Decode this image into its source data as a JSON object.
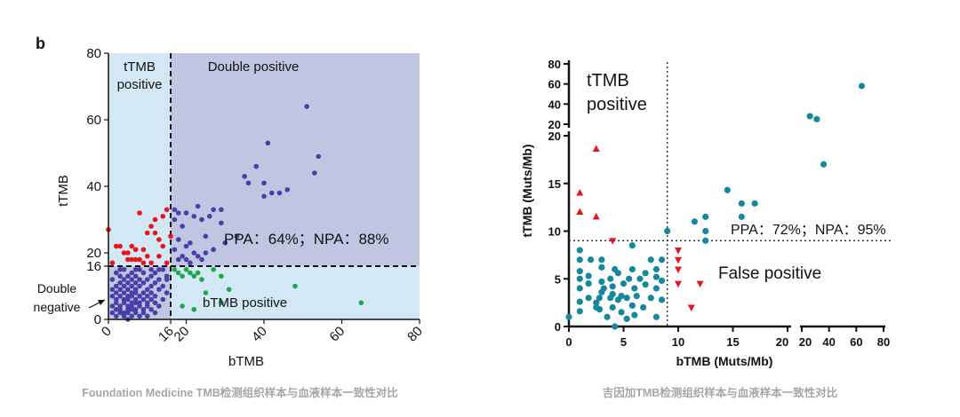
{
  "captions": {
    "left": "Foundation Medicine TMB检测组织样本与血液样本一致性对比",
    "right": "吉因加TMB检测组织样本与血液样本一致性对比"
  },
  "chart_data": [
    {
      "type": "scatter",
      "panel_label": "b",
      "xlabel": "bTMB",
      "ylabel": "tTMB",
      "xlim": [
        0,
        80
      ],
      "ylim": [
        0,
        80
      ],
      "x_ticks": [
        "0",
        "16",
        "20",
        "40",
        "60",
        "80"
      ],
      "y_ticks": [
        "0",
        "16",
        "20",
        "40",
        "60",
        "80"
      ],
      "threshold_x": 16,
      "threshold_y": 16,
      "region_labels": {
        "ttmb_positive": [
          "tTMB",
          "positive"
        ],
        "double_positive": "Double positive",
        "double_negative": [
          "Double",
          "negative"
        ],
        "btmb_positive": "bTMB positive"
      },
      "annotation": "PPA：64%；NPA：88%",
      "colors": {
        "double_positive": "#4a3fa8",
        "ttmb_only": "#e8141c",
        "btmb_only": "#1aa84a",
        "double_negative": "#4a3fa8",
        "bg_light": "#d3e8f5",
        "bg_dark": "#c0c6e2"
      },
      "series": [
        {
          "group": "double_positive",
          "points": [
            [
              51,
              64
            ],
            [
              54,
              49
            ],
            [
              53,
              44
            ],
            [
              41,
              53
            ],
            [
              46,
              39
            ],
            [
              44,
              38
            ],
            [
              42,
              38
            ],
            [
              40,
              37
            ],
            [
              40,
              41
            ],
            [
              38,
              46
            ],
            [
              36,
              41
            ],
            [
              35,
              43
            ],
            [
              29,
              33
            ],
            [
              27,
              33
            ],
            [
              26,
              31
            ],
            [
              24,
              30
            ],
            [
              23,
              34
            ],
            [
              25,
              25
            ],
            [
              22,
              31
            ],
            [
              20,
              32
            ],
            [
              18,
              32
            ],
            [
              17,
              33
            ],
            [
              21,
              23
            ],
            [
              22,
              20
            ],
            [
              23,
              19
            ],
            [
              20,
              22
            ],
            [
              18,
              24
            ],
            [
              17,
              21
            ],
            [
              19,
              19
            ],
            [
              21,
              17
            ],
            [
              24,
              18
            ],
            [
              27,
              21
            ],
            [
              30,
              23
            ],
            [
              17,
              30
            ],
            [
              19,
              28
            ],
            [
              33,
              25
            ],
            [
              29,
              29
            ],
            [
              25,
              20
            ],
            [
              18,
              18
            ],
            [
              20,
              18
            ]
          ]
        },
        {
          "group": "ttmb_only",
          "points": [
            [
              0,
              27
            ],
            [
              2,
              22
            ],
            [
              1,
              17
            ],
            [
              4,
              20
            ],
            [
              5,
              18
            ],
            [
              6,
              18
            ],
            [
              7,
              21
            ],
            [
              8,
              32
            ],
            [
              9,
              21
            ],
            [
              10,
              19
            ],
            [
              10,
              26
            ],
            [
              11,
              28
            ],
            [
              12,
              26
            ],
            [
              12,
              30
            ],
            [
              13,
              24
            ],
            [
              14,
              22
            ],
            [
              14,
              31
            ],
            [
              15,
              33
            ],
            [
              15,
              17
            ],
            [
              13,
              19
            ],
            [
              11,
              17
            ],
            [
              9,
              17
            ],
            [
              7,
              18
            ],
            [
              5,
              20
            ],
            [
              3,
              22
            ],
            [
              16,
              25
            ],
            [
              6,
              22
            ],
            [
              8,
              18
            ]
          ]
        },
        {
          "group": "btmb_only",
          "points": [
            [
              17,
              15
            ],
            [
              18,
              14
            ],
            [
              19,
              13
            ],
            [
              20,
              15
            ],
            [
              21,
              14
            ],
            [
              22,
              13
            ],
            [
              23,
              14
            ],
            [
              24,
              12
            ],
            [
              25,
              8
            ],
            [
              27,
              15
            ],
            [
              29,
              13
            ],
            [
              31,
              9
            ],
            [
              19,
              4
            ],
            [
              22,
              3
            ],
            [
              29,
              5
            ],
            [
              48,
              10
            ],
            [
              65,
              5
            ]
          ]
        },
        {
          "group": "double_negative",
          "points": [
            [
              1,
              2
            ],
            [
              1,
              4
            ],
            [
              1,
              7
            ],
            [
              1,
              9
            ],
            [
              1,
              12
            ],
            [
              2,
              1
            ],
            [
              2,
              3
            ],
            [
              2,
              5
            ],
            [
              2,
              6
            ],
            [
              2,
              8
            ],
            [
              2,
              10
            ],
            [
              2,
              14
            ],
            [
              3,
              2
            ],
            [
              3,
              3
            ],
            [
              3,
              4
            ],
            [
              3,
              7
            ],
            [
              3,
              9
            ],
            [
              3,
              11
            ],
            [
              3,
              13
            ],
            [
              4,
              1
            ],
            [
              4,
              2
            ],
            [
              4,
              5
            ],
            [
              4,
              6
            ],
            [
              4,
              8
            ],
            [
              4,
              10
            ],
            [
              4,
              12
            ],
            [
              4,
              15
            ],
            [
              5,
              0
            ],
            [
              5,
              2
            ],
            [
              5,
              3
            ],
            [
              5,
              4
            ],
            [
              5,
              6
            ],
            [
              5,
              7
            ],
            [
              5,
              9
            ],
            [
              5,
              11
            ],
            [
              5,
              13
            ],
            [
              6,
              1
            ],
            [
              6,
              3
            ],
            [
              6,
              4
            ],
            [
              6,
              5
            ],
            [
              6,
              7
            ],
            [
              6,
              8
            ],
            [
              6,
              10
            ],
            [
              6,
              12
            ],
            [
              6,
              14
            ],
            [
              7,
              2
            ],
            [
              7,
              3
            ],
            [
              7,
              5
            ],
            [
              7,
              6
            ],
            [
              7,
              8
            ],
            [
              7,
              9
            ],
            [
              7,
              11
            ],
            [
              7,
              13
            ],
            [
              8,
              1
            ],
            [
              8,
              4
            ],
            [
              8,
              5
            ],
            [
              8,
              7
            ],
            [
              8,
              10
            ],
            [
              8,
              12
            ],
            [
              8,
              15
            ],
            [
              9,
              2
            ],
            [
              9,
              3
            ],
            [
              9,
              6
            ],
            [
              9,
              8
            ],
            [
              9,
              11
            ],
            [
              9,
              14
            ],
            [
              10,
              1
            ],
            [
              10,
              4
            ],
            [
              10,
              5
            ],
            [
              10,
              7
            ],
            [
              10,
              9
            ],
            [
              10,
              12
            ],
            [
              11,
              3
            ],
            [
              11,
              6
            ],
            [
              11,
              8
            ],
            [
              11,
              10
            ],
            [
              11,
              13
            ],
            [
              12,
              2
            ],
            [
              12,
              5
            ],
            [
              12,
              7
            ],
            [
              12,
              11
            ],
            [
              12,
              14
            ],
            [
              13,
              4
            ],
            [
              13,
              9
            ],
            [
              13,
              12
            ],
            [
              14,
              6
            ],
            [
              14,
              10
            ],
            [
              14,
              15
            ],
            [
              15,
              8
            ],
            [
              15,
              12
            ],
            [
              15,
              13
            ],
            [
              3,
              15
            ],
            [
              11,
              15
            ],
            [
              7,
              15
            ],
            [
              13,
              15
            ]
          ]
        }
      ]
    },
    {
      "type": "scatter",
      "xlabel": "bTMB  (Muts/Mb)",
      "ylabel": "tTMB  (Muts/Mb)",
      "x_ticks": [
        "0",
        "5",
        "10",
        "15",
        "20",
        "20",
        "40",
        "60",
        "80"
      ],
      "y_ticks_lower": [
        "0",
        "5",
        "10",
        "15",
        "20"
      ],
      "y_ticks_upper": [
        "20",
        "40",
        "60",
        "80"
      ],
      "broken_axes": "x and y broken at 20",
      "threshold_x": 9,
      "threshold_y": 9,
      "region_labels": {
        "ttmb_positive": [
          "tTMB",
          "positive"
        ],
        "false_positive": "False positive"
      },
      "annotation": "PPA：72%；NPA：95%",
      "colors": {
        "circle": "#15889c",
        "triangle": "#e8141c"
      },
      "circles": [
        [
          0,
          1
        ],
        [
          1,
          1.6
        ],
        [
          1,
          2.6
        ],
        [
          1,
          4
        ],
        [
          1,
          5
        ],
        [
          1,
          5.8
        ],
        [
          1,
          7
        ],
        [
          1,
          8
        ],
        [
          1.8,
          3
        ],
        [
          1.8,
          4.5
        ],
        [
          1.8,
          5.3
        ],
        [
          2,
          7
        ],
        [
          2.5,
          2
        ],
        [
          2.5,
          2.5
        ],
        [
          2.8,
          1.8
        ],
        [
          2.8,
          3
        ],
        [
          3,
          3.6
        ],
        [
          3,
          4.7
        ],
        [
          3,
          6.2
        ],
        [
          3,
          7
        ],
        [
          3.2,
          4
        ],
        [
          3.5,
          1
        ],
        [
          3.8,
          3
        ],
        [
          3.8,
          5
        ],
        [
          4,
          2
        ],
        [
          4,
          3.4
        ],
        [
          4,
          4.2
        ],
        [
          4.2,
          0
        ],
        [
          4.2,
          6
        ],
        [
          4.5,
          2.8
        ],
        [
          4.5,
          5.6
        ],
        [
          4.8,
          1.5
        ],
        [
          4.8,
          3.2
        ],
        [
          5,
          4.5
        ],
        [
          5.3,
          0.8
        ],
        [
          5.3,
          3
        ],
        [
          5.5,
          5
        ],
        [
          5.8,
          2.2
        ],
        [
          5.8,
          6
        ],
        [
          5.8,
          8.5
        ],
        [
          6,
          1.2
        ],
        [
          6,
          4
        ],
        [
          6.2,
          3.2
        ],
        [
          6.5,
          5
        ],
        [
          6.8,
          2
        ],
        [
          7,
          4.4
        ],
        [
          7,
          5.6
        ],
        [
          7.5,
          3
        ],
        [
          7.5,
          7
        ],
        [
          8,
          1
        ],
        [
          8,
          4
        ],
        [
          8,
          5.2
        ],
        [
          8,
          6
        ],
        [
          8.5,
          2.8
        ],
        [
          8.5,
          4.8
        ],
        [
          8.5,
          7
        ],
        [
          9,
          10
        ],
        [
          11.5,
          11
        ],
        [
          12.5,
          9
        ],
        [
          12.5,
          10
        ],
        [
          12.5,
          11.5
        ],
        [
          14.5,
          14.3
        ],
        [
          15.8,
          11.5
        ],
        [
          15.8,
          12.9
        ],
        [
          17,
          12.9
        ],
        [
          26,
          28
        ],
        [
          31,
          25
        ],
        [
          36,
          17
        ],
        [
          64,
          58
        ]
      ],
      "triangles": [
        [
          1,
          14
        ],
        [
          1,
          12
        ],
        [
          2.5,
          18.6
        ],
        [
          2.5,
          11.5
        ],
        [
          4,
          9
        ],
        [
          10,
          8
        ],
        [
          10,
          7
        ],
        [
          10,
          6
        ],
        [
          10,
          4.5
        ],
        [
          11.2,
          2
        ],
        [
          12,
          4.5
        ]
      ]
    }
  ]
}
